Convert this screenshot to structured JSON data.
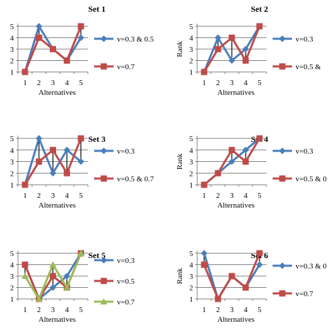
{
  "colors": {
    "blue": "#4a7ebb",
    "red": "#be4b48",
    "green": "#9bbb59",
    "axis": "#808080",
    "grid": "#808080",
    "errbar": "#000000"
  },
  "chart_data": [
    {
      "type": "line",
      "title": "Set 1",
      "xlabel": "Alternatives",
      "ylabel": "",
      "categories": [
        "1",
        "2",
        "3",
        "4",
        "5"
      ],
      "y_ticks": [
        "1",
        "2",
        "3",
        "4",
        "5"
      ],
      "ylim": [
        1,
        5
      ],
      "grid": true,
      "legend_position": "right",
      "series": [
        {
          "name": "v=0.3 & 0.5",
          "color": "blue",
          "marker": "diamond",
          "values": [
            1,
            5,
            3,
            2,
            4
          ]
        },
        {
          "name": "v=0.7",
          "color": "red",
          "marker": "square",
          "values": [
            1,
            4,
            3,
            2,
            5
          ]
        }
      ]
    },
    {
      "type": "line",
      "title": "Set 2",
      "xlabel": "Alternatives",
      "ylabel": "Rank",
      "categories": [
        "1",
        "2",
        "3",
        "4",
        "5"
      ],
      "y_ticks": [
        "1",
        "2",
        "3",
        "4",
        "5"
      ],
      "ylim": [
        1,
        5
      ],
      "grid": true,
      "legend_position": "right",
      "series": [
        {
          "name": "v=0.3",
          "color": "blue",
          "marker": "diamond",
          "values": [
            1,
            4,
            2,
            3,
            5
          ]
        },
        {
          "name": "v=0.5 &",
          "color": "red",
          "marker": "square",
          "values": [
            1,
            3,
            4,
            2,
            5
          ]
        }
      ]
    },
    {
      "type": "line",
      "title": "Set 3",
      "xlabel": "Alternatives",
      "ylabel": "",
      "categories": [
        "1",
        "2",
        "3",
        "4",
        "5"
      ],
      "y_ticks": [
        "1",
        "2",
        "3",
        "4",
        "5"
      ],
      "ylim": [
        1,
        5
      ],
      "grid": true,
      "legend_position": "right",
      "series": [
        {
          "name": "v=0.3",
          "color": "blue",
          "marker": "diamond",
          "values": [
            1,
            5,
            2,
            4,
            3
          ]
        },
        {
          "name": "v=0.5 & 0.7",
          "color": "red",
          "marker": "square",
          "values": [
            1,
            3,
            4,
            2,
            5
          ]
        }
      ]
    },
    {
      "type": "line",
      "title": "Set 4",
      "xlabel": "Alternatives",
      "ylabel": "Rank",
      "categories": [
        "1",
        "2",
        "3",
        "4",
        "5"
      ],
      "y_ticks": [
        "1",
        "2",
        "3",
        "4",
        "5"
      ],
      "ylim": [
        1,
        5
      ],
      "grid": true,
      "legend_position": "right",
      "series": [
        {
          "name": "v=0.3",
          "color": "blue",
          "marker": "diamond",
          "values": [
            1,
            2,
            3,
            4,
            5
          ]
        },
        {
          "name": "v=0.5 & 0",
          "color": "red",
          "marker": "square",
          "values": [
            1,
            2,
            4,
            3,
            5
          ]
        }
      ]
    },
    {
      "type": "line",
      "title": "Set 5",
      "xlabel": "Alternatives",
      "ylabel": "",
      "categories": [
        "1",
        "2",
        "3",
        "4",
        "5"
      ],
      "y_ticks": [
        "1",
        "2",
        "3",
        "4",
        "5"
      ],
      "ylim": [
        1,
        5
      ],
      "grid": true,
      "legend_position": "right",
      "series": [
        {
          "name": "v=0.3",
          "color": "blue",
          "marker": "diamond",
          "values": [
            4,
            1,
            2,
            3,
            5
          ]
        },
        {
          "name": "v=0.5",
          "color": "red",
          "marker": "square",
          "values": [
            4,
            1,
            3,
            2,
            5
          ]
        },
        {
          "name": "v=0.7",
          "color": "green",
          "marker": "triangle",
          "values": [
            3,
            1,
            4,
            2,
            5
          ]
        }
      ]
    },
    {
      "type": "line",
      "title": "Set 6",
      "xlabel": "Alternatives",
      "ylabel": "Rank",
      "categories": [
        "1",
        "2",
        "3",
        "4",
        "5"
      ],
      "y_ticks": [
        "1",
        "2",
        "3",
        "4",
        "5"
      ],
      "ylim": [
        1,
        5
      ],
      "grid": true,
      "legend_position": "right",
      "series": [
        {
          "name": "v=0.3 & 0",
          "color": "blue",
          "marker": "diamond",
          "values": [
            5,
            1,
            3,
            2,
            4
          ]
        },
        {
          "name": "v=0.7",
          "color": "red",
          "marker": "square",
          "values": [
            4,
            1,
            3,
            2,
            5
          ]
        }
      ]
    }
  ]
}
